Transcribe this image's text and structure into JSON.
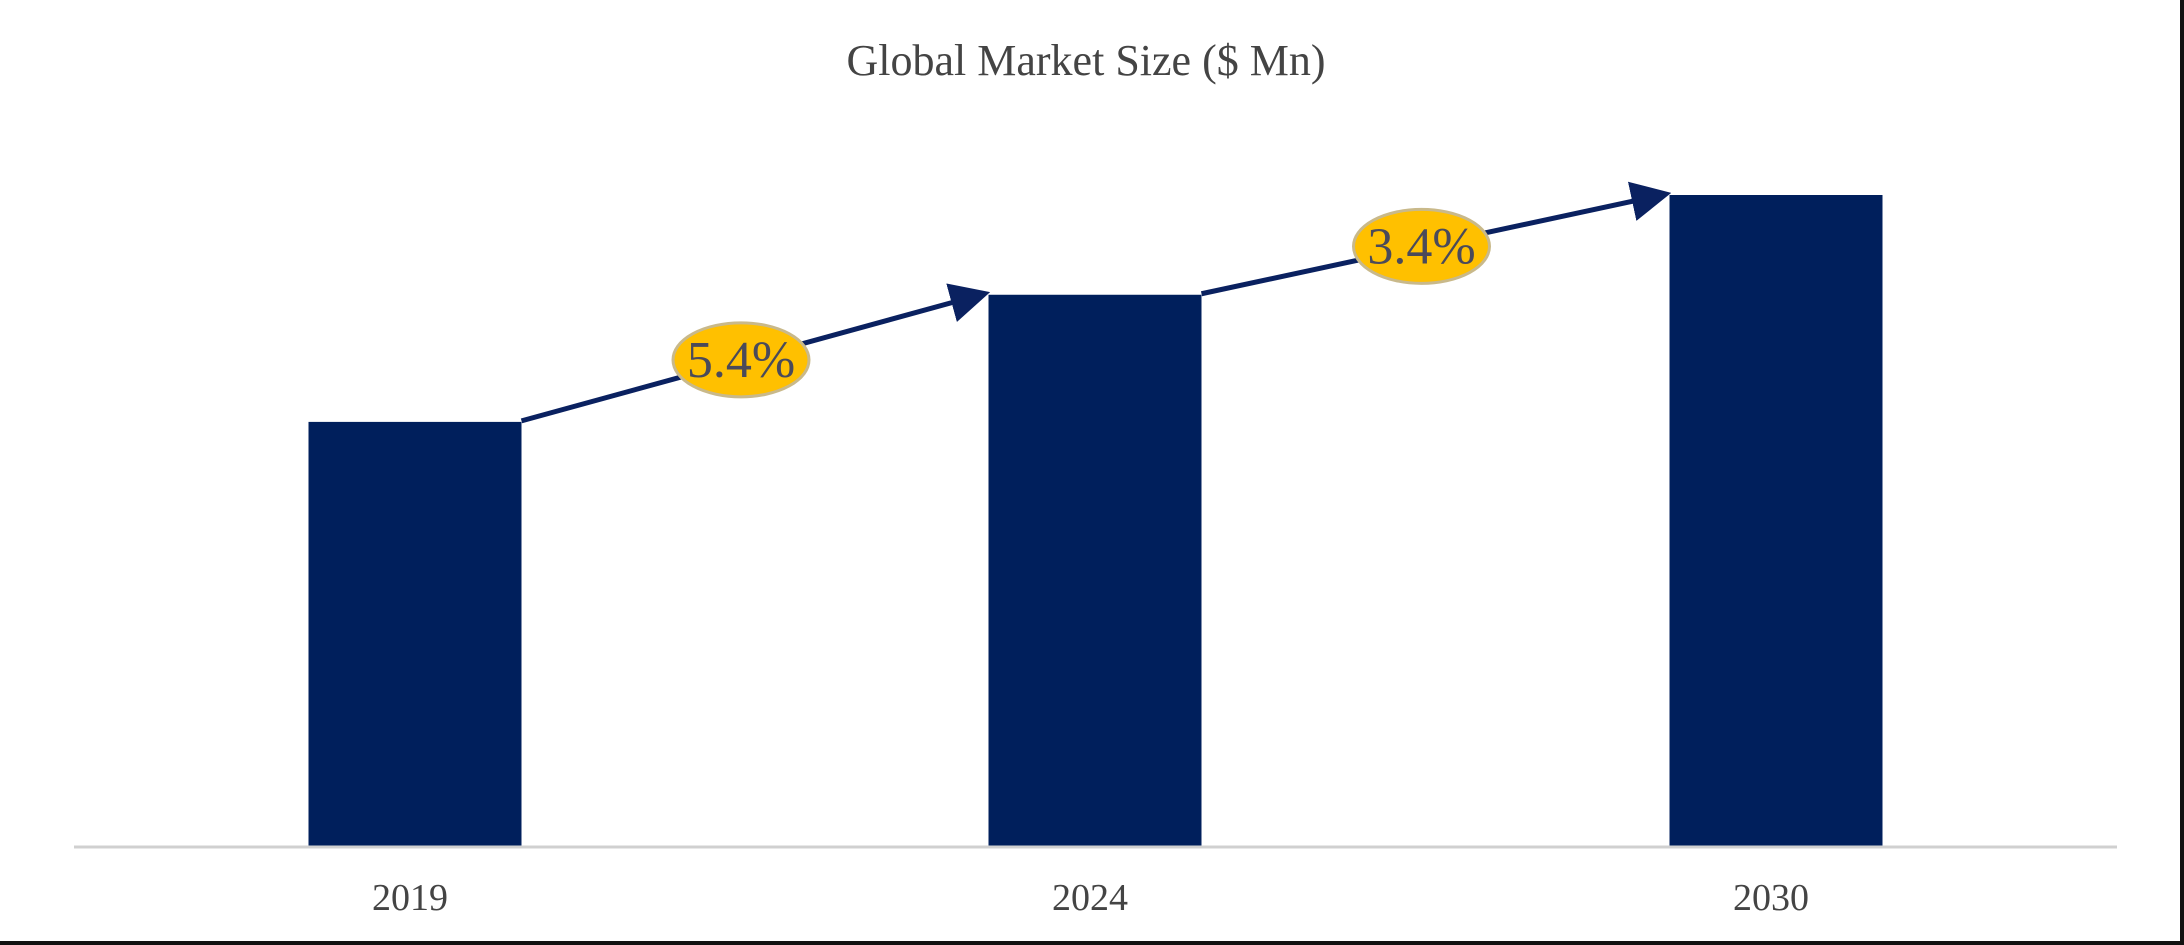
{
  "chart_data": {
    "type": "bar",
    "title": "Global Market Size ($ Mn)",
    "categories": [
      "2019",
      "2024",
      "2030"
    ],
    "values": [
      65.2,
      84.7,
      100
    ],
    "ylim": [
      0,
      100
    ],
    "xlabel": "",
    "ylabel": "",
    "grid": false,
    "legend": "none",
    "bar_color": "#001f5c",
    "annotations": [
      {
        "label": "5.4%",
        "from": "2019",
        "to": "2024"
      },
      {
        "label": "3.4%",
        "from": "2024",
        "to": "2030"
      }
    ],
    "annotation_fill": "#ffc000",
    "arrow_color": "#0a2160"
  }
}
